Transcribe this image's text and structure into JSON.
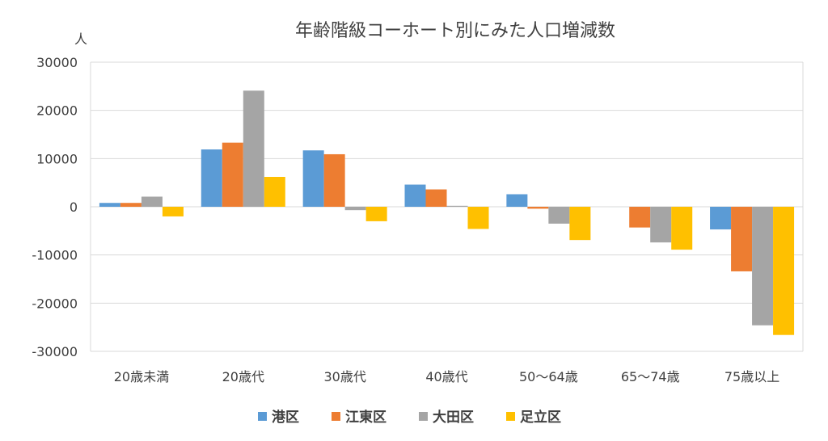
{
  "chart_data": {
    "type": "bar",
    "title": "年齢階級コーホート別にみた人口増減数",
    "ylabel": "人",
    "xlabel": "",
    "ylim": [
      -30000,
      30000
    ],
    "yticks": [
      30000,
      20000,
      10000,
      0,
      -10000,
      -20000,
      -30000
    ],
    "grid": true,
    "legend_position": "bottom",
    "categories": [
      "20歳未満",
      "20歳代",
      "30歳代",
      "40歳代",
      "50〜64歳",
      "65〜74歳",
      "75歳以上"
    ],
    "series": [
      {
        "name": "港区",
        "color": "#5B9BD5",
        "values": [
          800,
          11900,
          11700,
          4600,
          2600,
          0,
          -4700
        ]
      },
      {
        "name": "江東区",
        "color": "#ED7D31",
        "values": [
          800,
          13300,
          10900,
          3600,
          -400,
          -4300,
          -13400
        ]
      },
      {
        "name": "大田区",
        "color": "#A5A5A5",
        "values": [
          2100,
          24100,
          -700,
          200,
          -3500,
          -7400,
          -24600
        ]
      },
      {
        "name": "足立区",
        "color": "#FFC000",
        "values": [
          -2000,
          6200,
          -3000,
          -4600,
          -6900,
          -8900,
          -26600
        ]
      }
    ]
  }
}
